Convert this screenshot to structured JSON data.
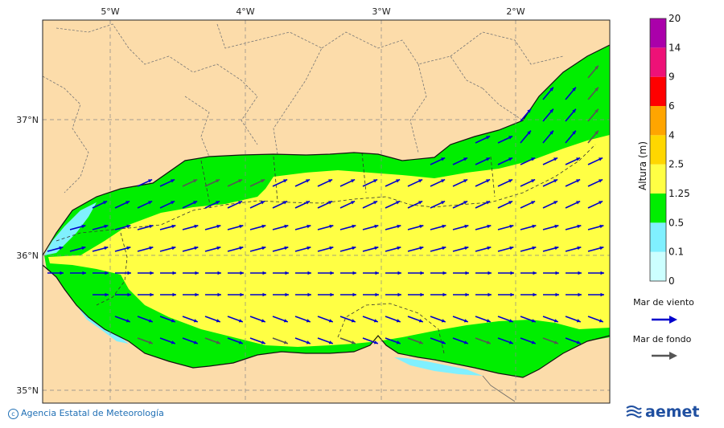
{
  "map": {
    "lon_ticks": [
      "5°W",
      "4°W",
      "3°W",
      "2°W"
    ],
    "lat_ticks": [
      "37°N",
      "36°N",
      "35°N"
    ]
  },
  "colorbar": {
    "title": "Altura (m)",
    "levels": [
      "0",
      "0.1",
      "0.5",
      "1.25",
      "2.5",
      "4",
      "6",
      "9",
      "14",
      "20"
    ],
    "colors": [
      "#ccffff",
      "#80f0ff",
      "#00ee00",
      "#ffff44",
      "#ffd700",
      "#ffa500",
      "#ff0000",
      "#ee1177",
      "#aa00aa"
    ]
  },
  "legend": {
    "wind_sea_label": "Mar de viento",
    "wind_sea_color": "#0000cc",
    "swell_label": "Mar de fondo",
    "swell_color": "#555555"
  },
  "credit": "Agencia Estatal de Meteorología",
  "logo_text": "aemet",
  "colors": {
    "land": "#fcdcaa",
    "coast": "#111111",
    "yellow": "#ffff44",
    "green": "#00ee00",
    "cyan": "#80f0ff"
  }
}
